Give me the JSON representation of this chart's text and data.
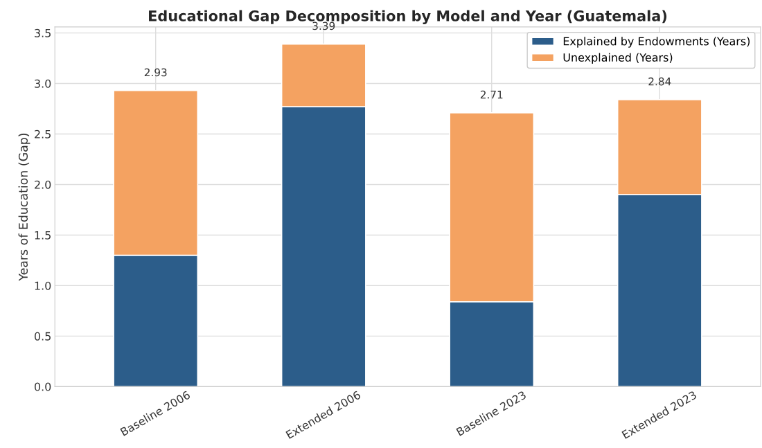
{
  "chart_data": {
    "type": "bar",
    "title": "Educational Gap Decomposition by Model and Year (Guatemala)",
    "ylabel": "Years of Education (Gap)",
    "categories": [
      "Baseline 2006",
      "Extended 2006",
      "Baseline 2023",
      "Extended 2023"
    ],
    "stacked": true,
    "series": [
      {
        "name": "Explained by Endowments (Years)",
        "color": "#2c5d8a",
        "values": [
          1.3,
          2.77,
          0.84,
          1.9
        ]
      },
      {
        "name": "Unexplained (Years)",
        "color": "#f4a261",
        "values": [
          1.63,
          0.62,
          1.87,
          0.94
        ]
      }
    ],
    "totals": [
      "2.93",
      "3.39",
      "2.71",
      "2.84"
    ],
    "ylim": [
      0,
      3.56
    ],
    "yticks": [
      {
        "value": 0,
        "label": "0.0"
      },
      0.5,
      {
        "value": 1,
        "label": "1.0"
      },
      1.5,
      {
        "value": 2,
        "label": "2.0"
      },
      2.5,
      {
        "value": 3,
        "label": "3.0"
      },
      3.5
    ],
    "grid": true,
    "legend": "top right"
  }
}
